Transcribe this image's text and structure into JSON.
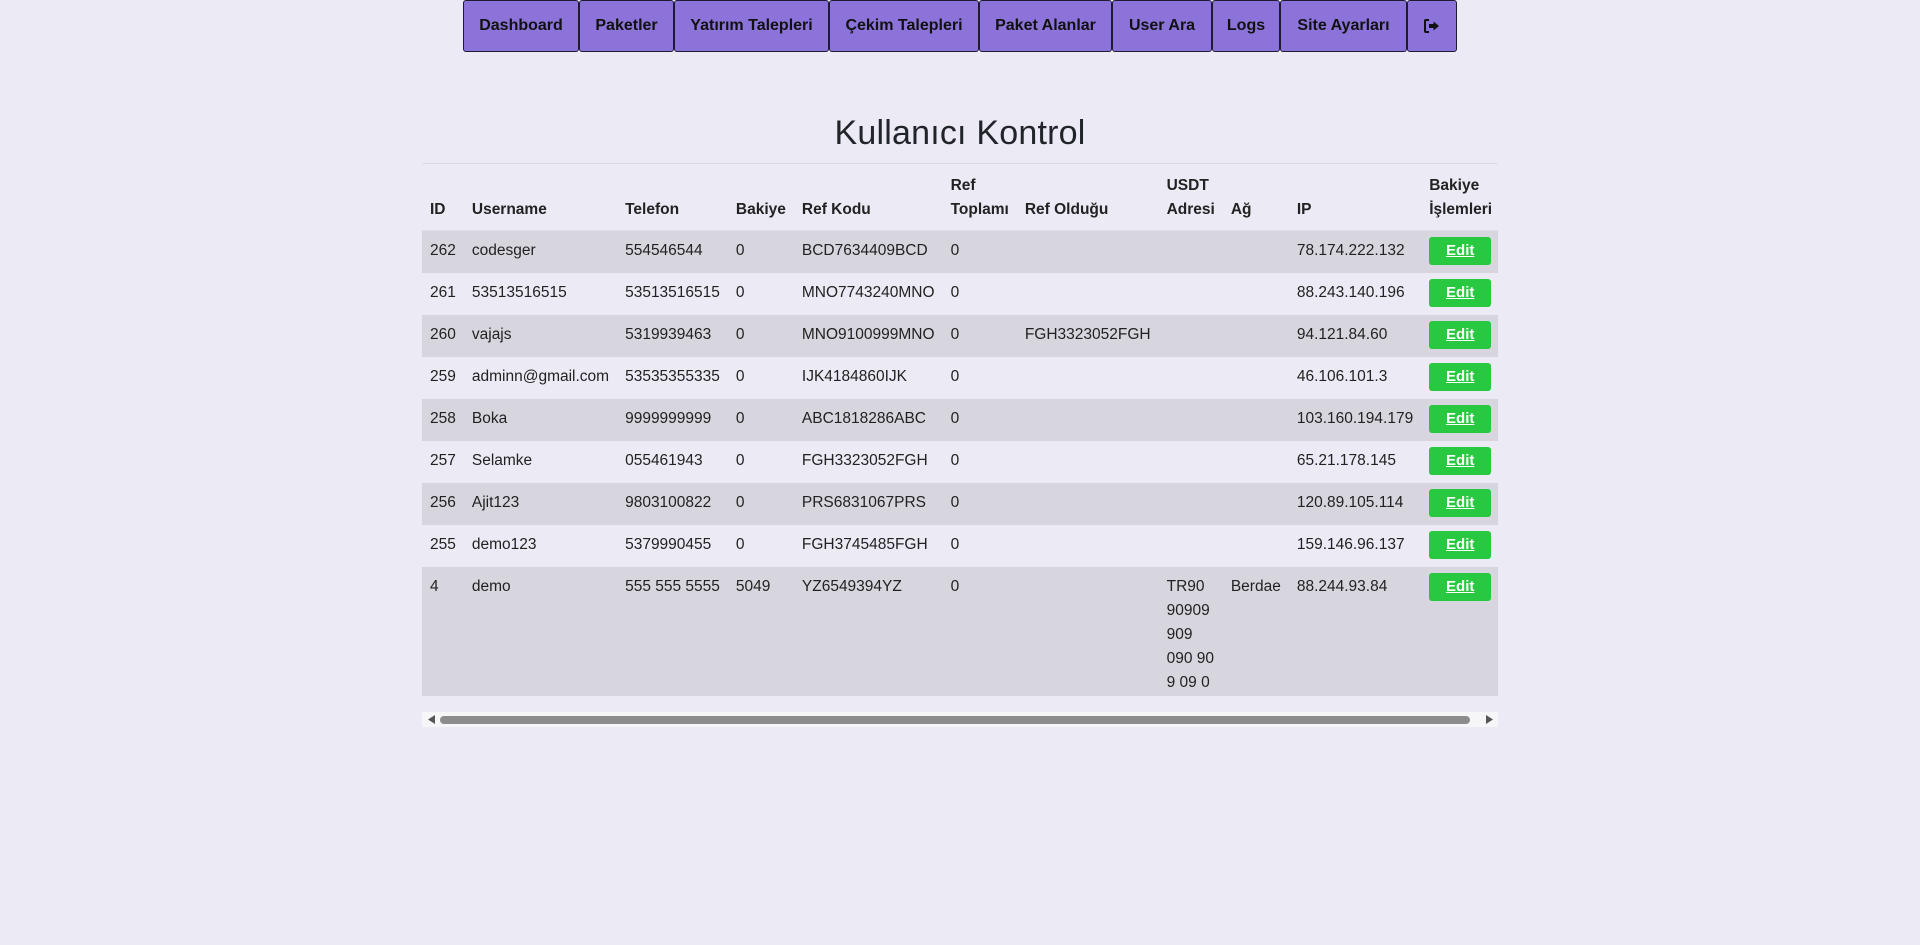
{
  "nav": {
    "items": [
      {
        "label": "Dashboard"
      },
      {
        "label": "Paketler"
      },
      {
        "label": "Yatırım Talepleri"
      },
      {
        "label": "Çekim Talepleri"
      },
      {
        "label": "Paket Alanlar"
      },
      {
        "label": "User Ara"
      },
      {
        "label": "Logs"
      },
      {
        "label": "Site Ayarları"
      }
    ],
    "logout_icon": "sign-out-icon"
  },
  "page": {
    "title": "Kullanıcı Kontrol"
  },
  "table": {
    "headers": {
      "id": "ID",
      "username": "Username",
      "telefon": "Telefon",
      "bakiye": "Bakiye",
      "ref_kodu": "Ref Kodu",
      "ref_toplami": "Ref Toplamı",
      "ref_oldugu": "Ref Olduğu",
      "usdt_adresi": "USDT Adresi",
      "ag": "Ağ",
      "ip": "IP",
      "bakiye_islemleri": "Bakiye İşlemleri"
    },
    "edit_label": "Edit",
    "rows": [
      {
        "id": "262",
        "username": "codesger",
        "telefon": "554546544",
        "bakiye": "0",
        "ref_kodu": "BCD7634409BCD",
        "ref_toplami": "0",
        "ref_oldugu": "",
        "usdt_adresi": "",
        "ag": "",
        "ip": "78.174.222.132"
      },
      {
        "id": "261",
        "username": "53513516515",
        "telefon": "53513516515",
        "bakiye": "0",
        "ref_kodu": "MNO7743240MNO",
        "ref_toplami": "0",
        "ref_oldugu": "",
        "usdt_adresi": "",
        "ag": "",
        "ip": "88.243.140.196"
      },
      {
        "id": "260",
        "username": "vajajs",
        "telefon": "5319939463",
        "bakiye": "0",
        "ref_kodu": "MNO9100999MNO",
        "ref_toplami": "0",
        "ref_oldugu": "FGH3323052FGH",
        "usdt_adresi": "",
        "ag": "",
        "ip": "94.121.84.60"
      },
      {
        "id": "259",
        "username": "adminn@gmail.com",
        "telefon": "53535355335",
        "bakiye": "0",
        "ref_kodu": "IJK4184860IJK",
        "ref_toplami": "0",
        "ref_oldugu": "",
        "usdt_adresi": "",
        "ag": "",
        "ip": "46.106.101.3"
      },
      {
        "id": "258",
        "username": "Boka",
        "telefon": "9999999999",
        "bakiye": "0",
        "ref_kodu": "ABC1818286ABC",
        "ref_toplami": "0",
        "ref_oldugu": "",
        "usdt_adresi": "",
        "ag": "",
        "ip": "103.160.194.179"
      },
      {
        "id": "257",
        "username": "Selamke",
        "telefon": "055461943",
        "bakiye": "0",
        "ref_kodu": "FGH3323052FGH",
        "ref_toplami": "0",
        "ref_oldugu": "",
        "usdt_adresi": "",
        "ag": "",
        "ip": "65.21.178.145"
      },
      {
        "id": "256",
        "username": "Ajit123",
        "telefon": "9803100822",
        "bakiye": "0",
        "ref_kodu": "PRS6831067PRS",
        "ref_toplami": "0",
        "ref_oldugu": "",
        "usdt_adresi": "",
        "ag": "",
        "ip": "120.89.105.114"
      },
      {
        "id": "255",
        "username": "demo123",
        "telefon": "5379990455",
        "bakiye": "0",
        "ref_kodu": "FGH3745485FGH",
        "ref_toplami": "0",
        "ref_oldugu": "",
        "usdt_adresi": "",
        "ag": "",
        "ip": "159.146.96.137"
      },
      {
        "id": "4",
        "username": "demo",
        "telefon": "555 555 5555",
        "bakiye": "5049",
        "ref_kodu": "YZ6549394YZ",
        "ref_toplami": "0",
        "ref_oldugu": "",
        "usdt_adresi": "TR90 90909 909 090 90 9 09 0",
        "ag": "Berdae",
        "ip": "88.244.93.84"
      }
    ]
  },
  "scrollbar": {
    "left_arrow_icon": "arrow-left-icon",
    "right_arrow_icon": "arrow-right-icon"
  }
}
